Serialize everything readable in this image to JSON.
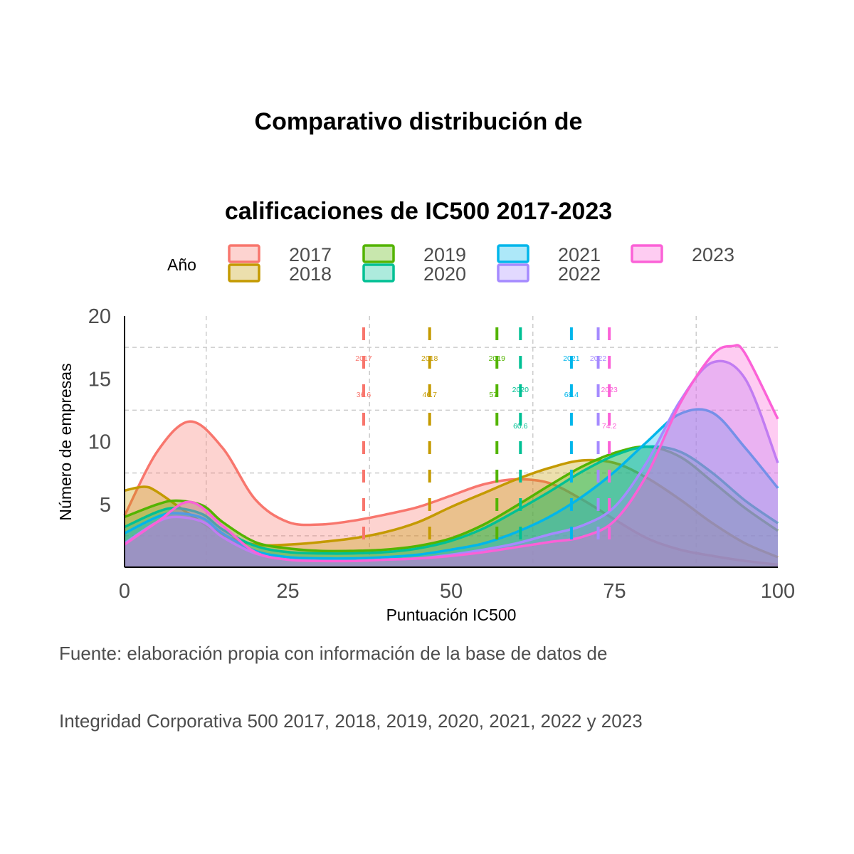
{
  "chart_data": {
    "type": "area",
    "title_lines": [
      "Comparativo distribución de",
      "calificaciones de IC500 2017-2023"
    ],
    "xlabel": "Puntuación IC500",
    "ylabel": "Número de empresas",
    "xlim": [
      0,
      100
    ],
    "ylim": [
      0,
      20
    ],
    "x_ticks": [
      "0",
      "25",
      "50",
      "75",
      "100"
    ],
    "y_ticks": [
      "5",
      "10",
      "15",
      "20"
    ],
    "grid": "dashed",
    "legend": {
      "title": "Año",
      "position": "top"
    },
    "caption_lines": [
      "Fuente: elaboración propia con información de la base de datos de",
      "Integridad Corporativa 500 2017, 2018, 2019, 2020, 2021, 2022 y 2023"
    ],
    "series": [
      {
        "name": "2017",
        "color": "#F8766D",
        "mean": 36.6,
        "mean_label": "36.6",
        "x": [
          0,
          5,
          10,
          15,
          20,
          25,
          30,
          35,
          40,
          45,
          50,
          55,
          60,
          65,
          70,
          75,
          80,
          85,
          90,
          95,
          100
        ],
        "y": [
          4.1,
          9.2,
          11.6,
          9.5,
          5.4,
          3.6,
          3.4,
          3.7,
          4.2,
          4.8,
          5.7,
          6.6,
          7.0,
          6.7,
          5.4,
          3.8,
          2.3,
          1.4,
          0.9,
          0.5,
          0.2
        ]
      },
      {
        "name": "2018",
        "color": "#C49A00",
        "mean": 46.7,
        "mean_label": "46.7",
        "x": [
          0,
          3,
          5,
          10,
          15,
          20,
          25,
          30,
          35,
          40,
          45,
          50,
          55,
          60,
          65,
          70,
          75,
          80,
          85,
          90,
          95,
          100
        ],
        "y": [
          6.1,
          6.4,
          6.0,
          4.2,
          2.6,
          1.8,
          1.8,
          2.0,
          2.3,
          2.8,
          3.6,
          4.8,
          5.9,
          7.0,
          7.9,
          8.5,
          8.3,
          7.1,
          5.4,
          3.5,
          1.9,
          0.8
        ]
      },
      {
        "name": "2019",
        "color": "#53B400",
        "mean": 57,
        "mean_label": "57",
        "x": [
          0,
          5,
          8,
          12,
          15,
          20,
          25,
          30,
          35,
          40,
          45,
          50,
          55,
          60,
          65,
          70,
          75,
          80,
          85,
          90,
          95,
          100
        ],
        "y": [
          4.0,
          5.0,
          5.3,
          4.9,
          3.6,
          2.0,
          1.5,
          1.3,
          1.3,
          1.4,
          1.7,
          2.3,
          3.4,
          4.9,
          6.5,
          8.0,
          9.1,
          9.6,
          8.8,
          6.8,
          4.7,
          2.9
        ]
      },
      {
        "name": "2020",
        "color": "#00C094",
        "mean": 60.6,
        "mean_label": "60.6",
        "x": [
          0,
          5,
          8,
          12,
          15,
          20,
          25,
          30,
          35,
          40,
          45,
          50,
          55,
          60,
          65,
          70,
          75,
          80,
          85,
          90,
          95,
          100
        ],
        "y": [
          3.2,
          4.4,
          4.7,
          4.2,
          3.0,
          1.7,
          1.2,
          1.1,
          1.1,
          1.2,
          1.5,
          2.1,
          3.1,
          4.5,
          6.0,
          7.6,
          8.9,
          9.6,
          9.2,
          7.5,
          5.3,
          3.5
        ]
      },
      {
        "name": "2021",
        "color": "#00B6EB",
        "mean": 68.4,
        "mean_label": "68.4",
        "x": [
          0,
          5,
          8,
          12,
          15,
          20,
          25,
          30,
          35,
          40,
          45,
          50,
          55,
          60,
          65,
          70,
          75,
          80,
          85,
          90,
          95,
          100
        ],
        "y": [
          2.7,
          4.0,
          4.3,
          3.9,
          2.7,
          1.3,
          0.8,
          0.7,
          0.7,
          0.8,
          1.0,
          1.4,
          1.9,
          2.8,
          4.0,
          5.6,
          7.6,
          10.0,
          12.2,
          12.3,
          9.5,
          6.3
        ]
      },
      {
        "name": "2022",
        "color": "#A58AFF",
        "mean": 72.5,
        "mean_label": "",
        "x": [
          0,
          5,
          8,
          12,
          15,
          20,
          25,
          30,
          35,
          40,
          45,
          50,
          55,
          60,
          65,
          70,
          75,
          80,
          85,
          90,
          95,
          100
        ],
        "y": [
          1.9,
          3.6,
          4.0,
          3.6,
          2.4,
          1.1,
          0.6,
          0.5,
          0.5,
          0.6,
          0.7,
          1.0,
          1.4,
          1.9,
          2.6,
          3.3,
          4.8,
          8.4,
          13.2,
          16.3,
          15.0,
          8.3
        ]
      },
      {
        "name": "2023",
        "color": "#FB61D7",
        "mean": 74.2,
        "mean_label": "74.2",
        "x": [
          0,
          5,
          10,
          15,
          20,
          25,
          30,
          35,
          40,
          45,
          50,
          55,
          60,
          65,
          70,
          75,
          80,
          85,
          90,
          93,
          95,
          100
        ],
        "y": [
          1.8,
          3.6,
          5.2,
          3.3,
          1.2,
          0.6,
          0.5,
          0.5,
          0.6,
          0.7,
          0.9,
          1.2,
          1.6,
          2.0,
          2.4,
          3.7,
          7.4,
          13.0,
          16.9,
          17.6,
          17.0,
          11.8
        ]
      }
    ]
  }
}
